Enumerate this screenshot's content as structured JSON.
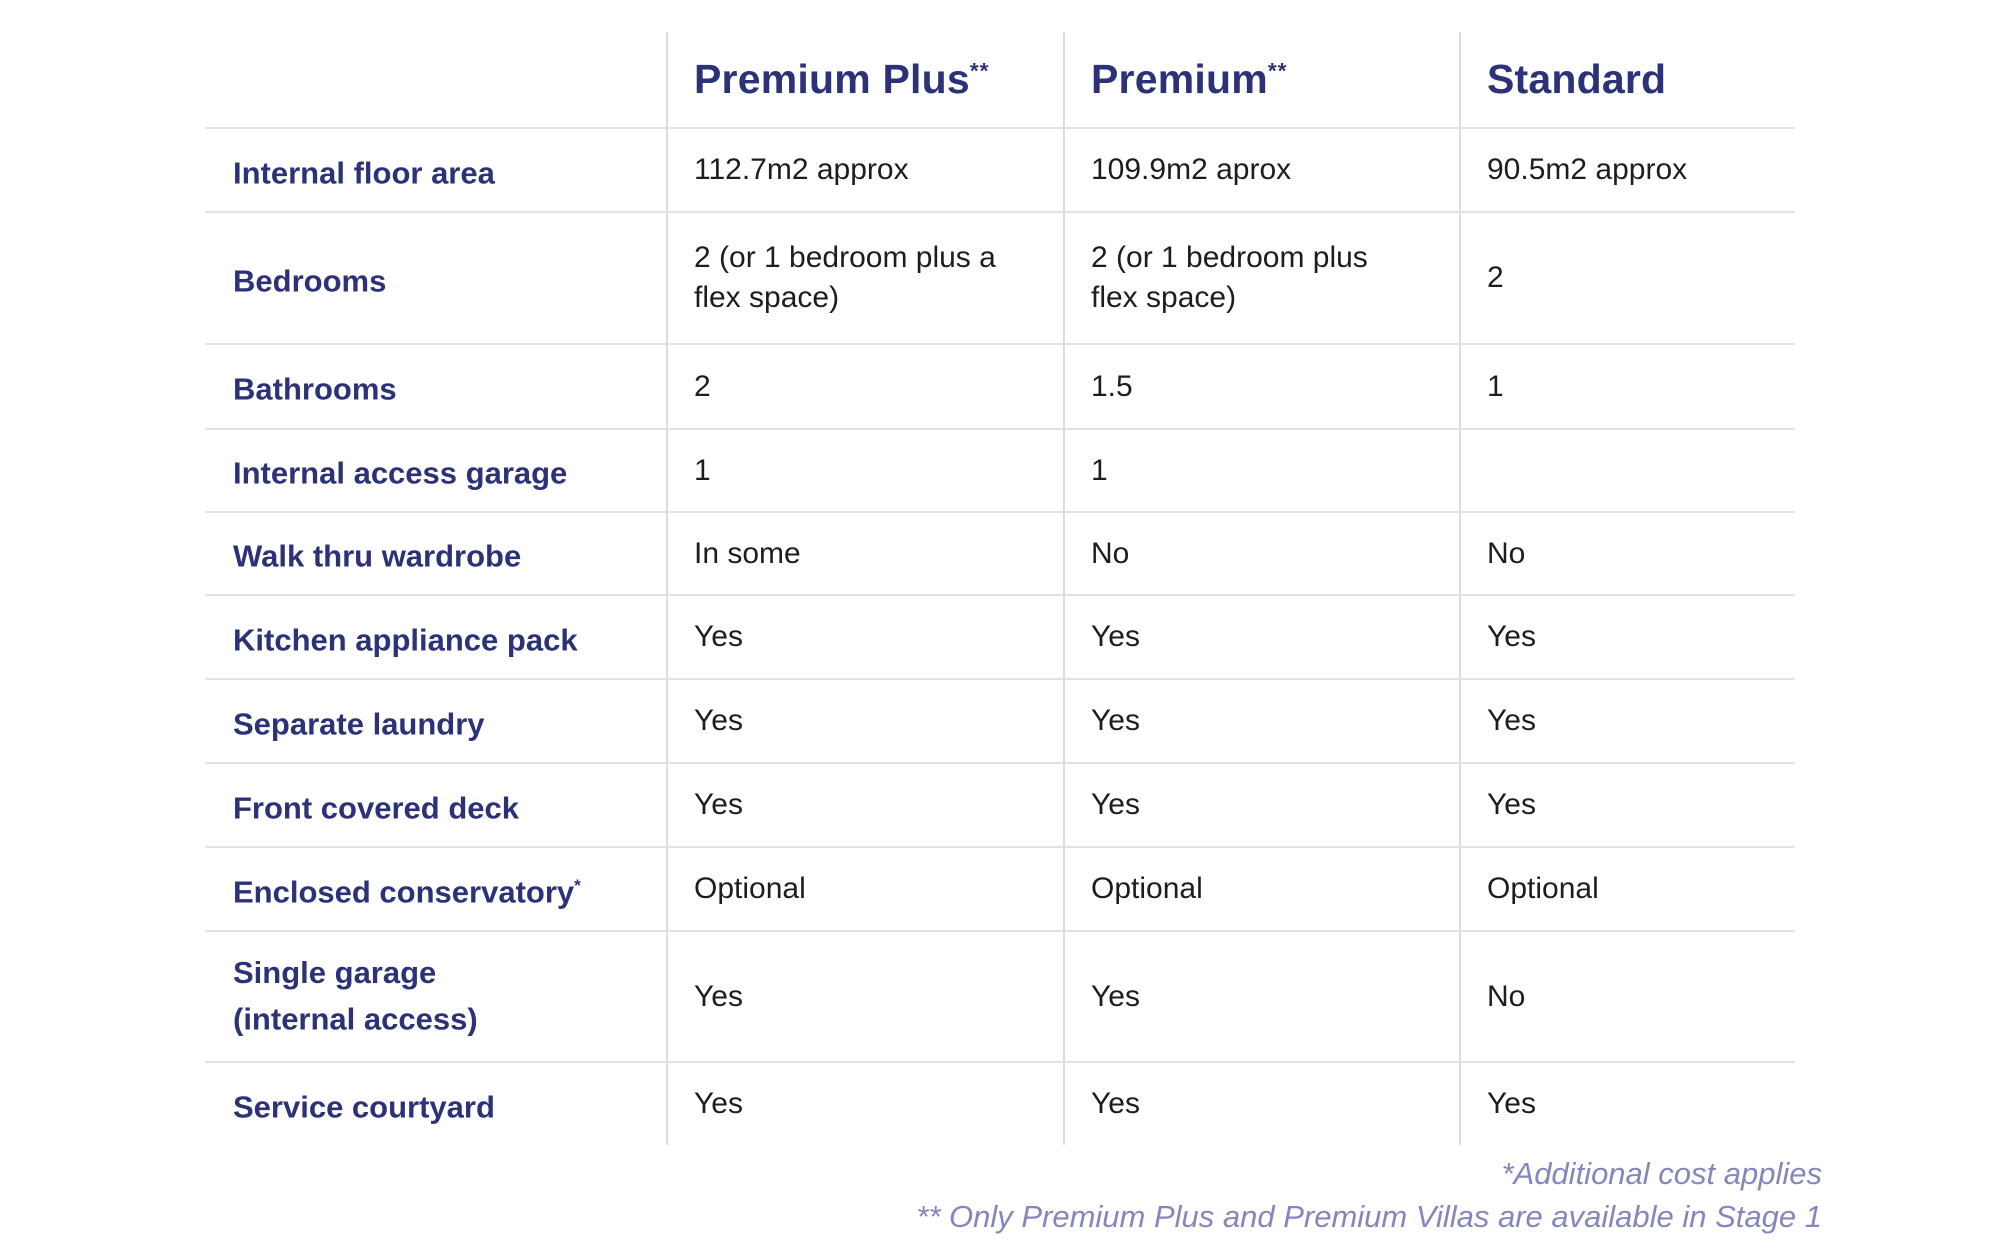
{
  "colors": {
    "heading_navy": "#2b3278",
    "body_text": "#1d1d1f",
    "grid_line": "#dcdcdc",
    "footnote_purple": "#8487bb"
  },
  "table": {
    "columns": [
      {
        "label": "Premium Plus",
        "superscript": "**"
      },
      {
        "label": "Premium",
        "superscript": "**"
      },
      {
        "label": "Standard",
        "superscript": ""
      }
    ],
    "rows": [
      {
        "label": "Internal floor area",
        "sup": "",
        "values": [
          "112.7m2 approx",
          "109.9m2 aprox",
          "90.5m2 approx"
        ]
      },
      {
        "label": "Bedrooms",
        "sup": "",
        "values": [
          "2 (or 1 bedroom plus a\nflex space)",
          "2 (or 1 bedroom  plus\nflex space)",
          "2"
        ]
      },
      {
        "label": "Bathrooms",
        "sup": "",
        "values": [
          "2",
          "1.5",
          "1"
        ]
      },
      {
        "label": "Internal access garage",
        "sup": "",
        "values": [
          "1",
          "1",
          ""
        ]
      },
      {
        "label": "Walk thru wardrobe",
        "sup": "",
        "values": [
          "In some",
          "No",
          "No"
        ]
      },
      {
        "label": "Kitchen appliance pack",
        "sup": "",
        "values": [
          "Yes",
          "Yes",
          "Yes"
        ]
      },
      {
        "label": "Separate laundry",
        "sup": "",
        "values": [
          "Yes",
          "Yes",
          "Yes"
        ]
      },
      {
        "label": "Front covered deck",
        "sup": "",
        "values": [
          "Yes",
          "Yes",
          "Yes"
        ]
      },
      {
        "label": "Enclosed conservatory",
        "sup": "*",
        "values": [
          "Optional",
          "Optional",
          "Optional"
        ]
      },
      {
        "label": "Single garage\n(internal access)",
        "sup": "",
        "values": [
          "Yes",
          "Yes",
          "No"
        ]
      },
      {
        "label": "Service courtyard",
        "sup": "",
        "values": [
          "Yes",
          "Yes",
          "Yes"
        ]
      }
    ],
    "footnotes": [
      "*Additional cost applies",
      "** Only Premium Plus and Premium Villas are available in Stage 1"
    ]
  }
}
